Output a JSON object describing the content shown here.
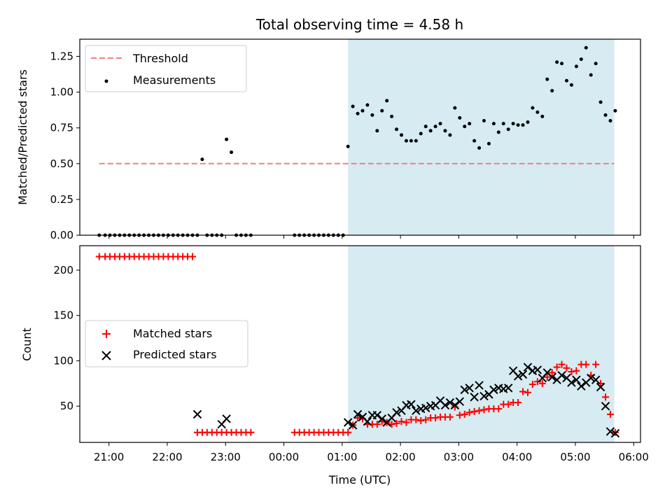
{
  "chart_data": [
    {
      "type": "scatter",
      "title": "Total observing time = 4.58 h",
      "ylabel": "Matched/Predicted stars",
      "xlabel": "",
      "xlim": [
        "20:30",
        "06:07"
      ],
      "ylim": [
        0,
        1.37
      ],
      "yticks": [
        0,
        0.25,
        0.5,
        0.75,
        1.0,
        1.25
      ],
      "ytick_labels": [
        "0.00",
        "0.25",
        "0.50",
        "0.75",
        "1.00",
        "1.25"
      ],
      "xtick_labels": [],
      "shaded_region": {
        "x": [
          "01:06",
          "05:40"
        ],
        "color": "#add8e6"
      },
      "legend": {
        "position": "upper left",
        "entries": [
          "Threshold",
          "Measurements"
        ]
      },
      "series": [
        {
          "name": "Threshold",
          "kind": "dashed-line",
          "color": "#f08080",
          "x": [
            "20:50",
            "05:40"
          ],
          "y": [
            0.5,
            0.5
          ]
        },
        {
          "name": "Measurements",
          "kind": "dot",
          "color": "#000000",
          "x": [
            "20:50",
            "20:56",
            "21:01",
            "21:06",
            "21:11",
            "21:16",
            "21:21",
            "21:26",
            "21:31",
            "21:36",
            "21:41",
            "21:46",
            "21:51",
            "21:56",
            "22:01",
            "22:06",
            "22:11",
            "22:16",
            "22:21",
            "22:26",
            "22:31",
            "22:36",
            "22:41",
            "22:46",
            "22:51",
            "22:56",
            "23:01",
            "23:06",
            "23:11",
            "23:16",
            "23:21",
            "23:26",
            "00:11",
            "00:16",
            "00:21",
            "00:26",
            "00:31",
            "00:36",
            "00:41",
            "00:46",
            "00:51",
            "00:56",
            "01:01",
            "01:06",
            "01:11",
            "01:16",
            "01:21",
            "01:26",
            "01:31",
            "01:36",
            "01:41",
            "01:46",
            "01:51",
            "01:56",
            "02:01",
            "02:06",
            "02:11",
            "02:16",
            "02:21",
            "02:26",
            "02:31",
            "02:36",
            "02:41",
            "02:46",
            "02:51",
            "02:56",
            "03:01",
            "03:06",
            "03:11",
            "03:16",
            "03:21",
            "03:26",
            "03:31",
            "03:36",
            "03:41",
            "03:46",
            "03:51",
            "03:56",
            "04:01",
            "04:06",
            "04:11",
            "04:16",
            "04:21",
            "04:26",
            "04:31",
            "04:36",
            "04:41",
            "04:46",
            "04:51",
            "04:56",
            "05:01",
            "05:06",
            "05:11",
            "05:16",
            "05:21",
            "05:26",
            "05:31",
            "05:36",
            "05:41"
          ],
          "y": [
            0,
            0,
            0,
            0,
            0,
            0,
            0,
            0,
            0,
            0,
            0,
            0,
            0,
            0,
            0,
            0,
            0,
            0,
            0,
            0,
            0,
            0.53,
            0,
            0,
            0,
            0,
            0.67,
            0.58,
            0,
            0,
            0,
            0,
            0,
            0,
            0,
            0,
            0,
            0,
            0,
            0,
            0,
            0,
            0,
            0.62,
            0.9,
            0.85,
            0.87,
            0.91,
            0.84,
            0.73,
            0.87,
            0.94,
            0.83,
            0.74,
            0.7,
            0.66,
            0.66,
            0.66,
            0.71,
            0.76,
            0.73,
            0.76,
            0.78,
            0.73,
            0.7,
            0.89,
            0.82,
            0.76,
            0.78,
            0.66,
            0.61,
            0.8,
            0.64,
            0.78,
            0.72,
            0.78,
            0.74,
            0.78,
            0.77,
            0.77,
            0.79,
            0.89,
            0.86,
            0.83,
            1.09,
            1.01,
            1.21,
            1.2,
            1.08,
            1.05,
            1.18,
            1.23,
            1.31,
            1.12,
            1.2,
            0.93,
            0.84,
            0.8,
            0.87
          ]
        }
      ]
    },
    {
      "type": "scatter",
      "title": "",
      "xlabel": "Time (UTC)",
      "ylabel": "Count",
      "xlim": [
        "20:30",
        "06:07"
      ],
      "ylim": [
        10,
        227
      ],
      "yticks": [
        50,
        100,
        150,
        200
      ],
      "xticks": [
        "21:00",
        "22:00",
        "23:00",
        "00:00",
        "01:00",
        "02:00",
        "03:00",
        "04:00",
        "05:00",
        "06:00"
      ],
      "shaded_region": {
        "x": [
          "01:06",
          "05:40"
        ],
        "color": "#add8e6"
      },
      "legend": {
        "position": "center left",
        "entries": [
          "Matched stars",
          "Predicted stars"
        ]
      },
      "series": [
        {
          "name": "Matched stars",
          "kind": "plus",
          "color": "#ff0000",
          "x": [
            "20:50",
            "20:56",
            "21:01",
            "21:06",
            "21:11",
            "21:16",
            "21:21",
            "21:26",
            "21:31",
            "21:36",
            "21:41",
            "21:46",
            "21:51",
            "21:56",
            "22:01",
            "22:06",
            "22:11",
            "22:16",
            "22:21",
            "22:26",
            "22:31",
            "22:36",
            "22:41",
            "22:46",
            "22:51",
            "22:56",
            "23:01",
            "23:06",
            "23:11",
            "23:16",
            "23:21",
            "23:26",
            "00:11",
            "00:16",
            "00:21",
            "00:26",
            "00:31",
            "00:36",
            "00:41",
            "00:46",
            "00:51",
            "00:56",
            "01:01",
            "01:06",
            "01:11",
            "01:16",
            "01:21",
            "01:26",
            "01:31",
            "01:36",
            "01:41",
            "01:46",
            "01:51",
            "01:56",
            "02:01",
            "02:06",
            "02:11",
            "02:16",
            "02:21",
            "02:26",
            "02:31",
            "02:36",
            "02:41",
            "02:46",
            "02:51",
            "02:56",
            "03:01",
            "03:06",
            "03:11",
            "03:16",
            "03:21",
            "03:26",
            "03:31",
            "03:36",
            "03:41",
            "03:46",
            "03:51",
            "03:56",
            "04:01",
            "04:06",
            "04:11",
            "04:16",
            "04:21",
            "04:26",
            "04:31",
            "04:36",
            "04:41",
            "04:46",
            "04:51",
            "04:56",
            "05:01",
            "05:06",
            "05:11",
            "05:16",
            "05:21",
            "05:26",
            "05:31",
            "05:36",
            "05:41"
          ],
          "y": [
            215,
            215,
            215,
            215,
            215,
            215,
            215,
            215,
            215,
            215,
            215,
            215,
            215,
            215,
            215,
            215,
            215,
            215,
            215,
            215,
            21,
            21,
            21,
            21,
            21,
            21,
            21,
            21,
            21,
            21,
            21,
            21,
            21,
            21,
            21,
            21,
            21,
            21,
            21,
            21,
            21,
            21,
            21,
            21,
            29,
            37,
            36,
            30,
            30,
            30,
            33,
            32,
            30,
            31,
            33,
            32,
            35,
            35,
            34,
            35,
            37,
            37,
            38,
            38,
            38,
            49,
            40,
            41,
            43,
            44,
            45,
            46,
            47,
            47,
            47,
            52,
            52,
            54,
            54,
            66,
            65,
            74,
            77,
            75,
            82,
            87,
            93,
            96,
            92,
            88,
            89,
            96,
            96,
            84,
            96,
            75,
            60,
            41,
            21
          ]
        },
        {
          "name": "Predicted stars",
          "kind": "x",
          "color": "#000000",
          "x": [
            "22:31",
            "22:56",
            "23:01",
            "01:06",
            "01:11",
            "01:16",
            "01:21",
            "01:26",
            "01:31",
            "01:36",
            "01:41",
            "01:46",
            "01:51",
            "01:56",
            "02:01",
            "02:06",
            "02:11",
            "02:16",
            "02:21",
            "02:26",
            "02:31",
            "02:36",
            "02:41",
            "02:46",
            "02:51",
            "02:56",
            "03:01",
            "03:06",
            "03:11",
            "03:16",
            "03:21",
            "03:26",
            "03:31",
            "03:36",
            "03:41",
            "03:46",
            "03:51",
            "03:56",
            "04:01",
            "04:06",
            "04:11",
            "04:16",
            "04:21",
            "04:26",
            "04:31",
            "04:36",
            "04:41",
            "04:46",
            "04:51",
            "04:56",
            "05:01",
            "05:06",
            "05:11",
            "05:16",
            "05:21",
            "05:26",
            "05:31",
            "05:36",
            "05:41"
          ],
          "y": [
            41,
            30,
            36,
            32,
            29,
            41,
            38,
            33,
            40,
            40,
            36,
            32,
            37,
            43,
            45,
            51,
            52,
            45,
            47,
            48,
            50,
            51,
            56,
            51,
            54,
            51,
            55,
            68,
            70,
            60,
            73,
            61,
            63,
            68,
            70,
            69,
            70,
            89,
            83,
            85,
            93,
            89,
            90,
            81,
            87,
            82,
            79,
            84,
            81,
            76,
            79,
            72,
            76,
            81,
            79,
            71,
            50,
            22,
            20
          ]
        }
      ]
    }
  ]
}
